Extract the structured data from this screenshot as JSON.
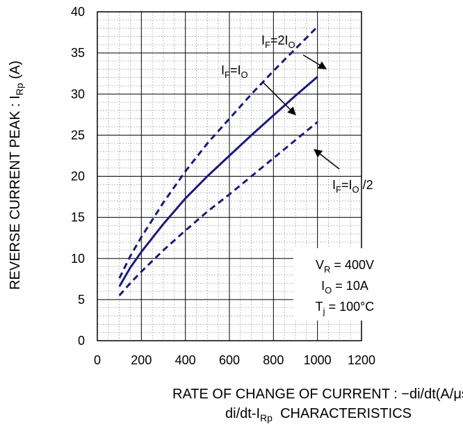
{
  "chart_data": {
    "type": "line",
    "title": "",
    "caption": "di/dt-IRp  CHARACTERISTICS",
    "caption_parts": {
      "pre": "di/dt-I",
      "sub": "Rp",
      "post": "  CHARACTERISTICS"
    },
    "xlabel": "RATE OF CHANGE OF CURRENT : −di/dt(A/μs)",
    "ylabel": "REVERSE CURRENT PEAK : IRp (A)",
    "ylabel_parts": {
      "pre": "REVERSE CURRENT PEAK : I",
      "sub": "Rp",
      "post": " (A)"
    },
    "xlim": [
      0,
      1200
    ],
    "ylim": [
      0,
      40
    ],
    "xticks": [
      0,
      200,
      400,
      600,
      800,
      1000,
      1200
    ],
    "yticks": [
      0,
      5,
      10,
      15,
      20,
      25,
      30,
      35,
      40
    ],
    "grid": true,
    "series": [
      {
        "name": "IF=2IO",
        "style": "dashed",
        "color": "#1a1a7a",
        "label_parts": {
          "a": "I",
          "a_sub": "F",
          "b": "=2I",
          "b_sub": "O",
          "c": ""
        },
        "x": [
          100,
          150,
          200,
          300,
          400,
          500,
          600,
          700,
          800,
          900,
          1000
        ],
        "y": [
          7.6,
          10.3,
          12.6,
          16.8,
          20.6,
          24.0,
          27.0,
          30.0,
          32.8,
          35.5,
          38.2
        ]
      },
      {
        "name": "IF=IO",
        "style": "solid",
        "color": "#1a1a7a",
        "label_parts": {
          "a": "I",
          "a_sub": "F",
          "b": "=I",
          "b_sub": "O",
          "c": ""
        },
        "x": [
          100,
          150,
          200,
          300,
          400,
          500,
          600,
          700,
          800,
          900,
          1000
        ],
        "y": [
          6.6,
          8.9,
          10.8,
          14.2,
          17.3,
          20.0,
          22.5,
          25.0,
          27.4,
          29.8,
          32.1
        ]
      },
      {
        "name": "IF=IO /2",
        "style": "dashed",
        "color": "#1a1a7a",
        "label_parts": {
          "a": "I",
          "a_sub": "F",
          "b": "=I",
          "b_sub": "O",
          "c": " /2"
        },
        "x": [
          100,
          150,
          200,
          300,
          400,
          500,
          600,
          700,
          800,
          900,
          1000
        ],
        "y": [
          5.5,
          7.0,
          8.4,
          11.0,
          13.4,
          15.7,
          17.8,
          20.0,
          22.2,
          24.4,
          26.6
        ]
      }
    ],
    "conditions": [
      {
        "a": "V",
        "sub": "R",
        "b": " = 400V"
      },
      {
        "a": "I",
        "sub": "O",
        "b": " = 10A"
      },
      {
        "a": "T",
        "sub": "j",
        "b": " = 100°C"
      }
    ],
    "colors": {
      "line": "#1a1a7a",
      "grid_major": "#000000",
      "grid_minor": "#a0a0a0"
    }
  }
}
